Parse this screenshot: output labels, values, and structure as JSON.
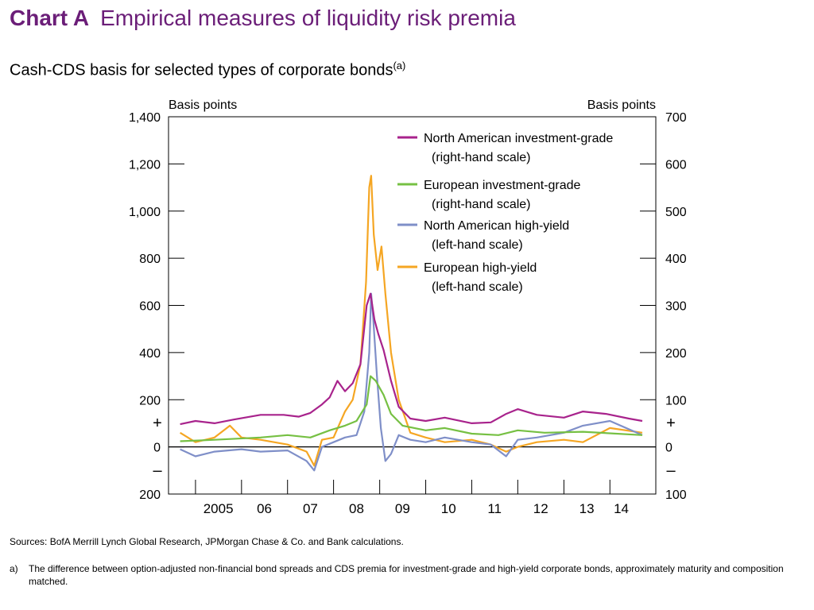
{
  "header": {
    "chart_label": "Chart A",
    "title": "Empirical measures of liquidity risk premia",
    "subtitle": "Cash-CDS basis for selected types of corporate bonds",
    "subtitle_note": "(a)"
  },
  "footer": {
    "sources": "Sources:  BofA Merrill Lynch Global Research, JPMorgan Chase & Co. and Bank calculations.",
    "footnote_marker": "a)",
    "footnote_text": "The difference between option-adjusted non-financial bond spreads and CDS premia for investment-grade and high-yield corporate bonds, approximately maturity and composition matched."
  },
  "chart_data": {
    "type": "line",
    "left_axis": {
      "unit_label": "Basis points",
      "range": [
        -200,
        1400
      ],
      "ticks": [
        -200,
        0,
        200,
        400,
        600,
        800,
        1000,
        1200,
        1400
      ],
      "tick_labels": [
        "200",
        "0",
        "200",
        "400",
        "600",
        "800",
        "1,000",
        "1,200",
        "1,400"
      ],
      "sign_plus": "+",
      "sign_minus": "–"
    },
    "right_axis": {
      "unit_label": "Basis points",
      "range": [
        -100,
        700
      ],
      "ticks": [
        -100,
        0,
        100,
        200,
        300,
        400,
        500,
        600,
        700
      ],
      "tick_labels": [
        "100",
        "0",
        "100",
        "200",
        "300",
        "400",
        "500",
        "600",
        "700"
      ],
      "sign_plus": "+",
      "sign_minus": "–"
    },
    "x_axis": {
      "range": [
        "2004-06-01",
        "2014-12-31"
      ],
      "year_labels": [
        {
          "label": "2005",
          "date": "2005-07-01"
        },
        {
          "label": "06",
          "date": "2006-07-01"
        },
        {
          "label": "07",
          "date": "2007-07-01"
        },
        {
          "label": "08",
          "date": "2008-07-01"
        },
        {
          "label": "09",
          "date": "2009-07-01"
        },
        {
          "label": "10",
          "date": "2010-07-01"
        },
        {
          "label": "11",
          "date": "2011-07-01"
        },
        {
          "label": "12",
          "date": "2012-07-01"
        },
        {
          "label": "13",
          "date": "2013-07-01"
        },
        {
          "label": "14",
          "date": "2014-04-01"
        }
      ]
    },
    "grid": false,
    "legend_position": "top-right",
    "series": [
      {
        "name": "North American investment-grade",
        "name_note": "(right-hand scale)",
        "axis": "right",
        "color": "#a8238c",
        "points": [
          [
            "2004-09-01",
            48
          ],
          [
            "2005-01-01",
            55
          ],
          [
            "2005-06-01",
            50
          ],
          [
            "2005-11-01",
            58
          ],
          [
            "2006-06-01",
            68
          ],
          [
            "2006-12-01",
            68
          ],
          [
            "2007-04-01",
            64
          ],
          [
            "2007-07-01",
            72
          ],
          [
            "2007-10-01",
            90
          ],
          [
            "2007-12-01",
            105
          ],
          [
            "2008-02-01",
            140
          ],
          [
            "2008-04-01",
            118
          ],
          [
            "2008-06-01",
            135
          ],
          [
            "2008-08-01",
            175
          ],
          [
            "2008-09-20",
            300
          ],
          [
            "2008-10-20",
            325
          ],
          [
            "2008-11-20",
            270
          ],
          [
            "2008-12-20",
            240
          ],
          [
            "2009-02-01",
            205
          ],
          [
            "2009-04-01",
            140
          ],
          [
            "2009-06-01",
            85
          ],
          [
            "2009-09-01",
            60
          ],
          [
            "2010-01-01",
            55
          ],
          [
            "2010-06-01",
            62
          ],
          [
            "2011-01-01",
            50
          ],
          [
            "2011-06-01",
            52
          ],
          [
            "2011-10-01",
            70
          ],
          [
            "2012-01-01",
            80
          ],
          [
            "2012-06-01",
            68
          ],
          [
            "2013-01-01",
            62
          ],
          [
            "2013-06-01",
            75
          ],
          [
            "2013-12-01",
            70
          ],
          [
            "2014-06-01",
            60
          ],
          [
            "2014-09-15",
            55
          ]
        ]
      },
      {
        "name": "European investment-grade",
        "name_note": "(right-hand scale)",
        "axis": "right",
        "color": "#76c043",
        "points": [
          [
            "2004-09-01",
            12
          ],
          [
            "2005-06-01",
            15
          ],
          [
            "2006-06-01",
            20
          ],
          [
            "2007-01-01",
            25
          ],
          [
            "2007-07-01",
            20
          ],
          [
            "2007-12-01",
            35
          ],
          [
            "2008-04-01",
            45
          ],
          [
            "2008-07-01",
            55
          ],
          [
            "2008-09-20",
            90
          ],
          [
            "2008-10-20",
            150
          ],
          [
            "2008-12-01",
            140
          ],
          [
            "2009-02-01",
            110
          ],
          [
            "2009-04-01",
            70
          ],
          [
            "2009-07-01",
            45
          ],
          [
            "2010-01-01",
            35
          ],
          [
            "2010-06-01",
            40
          ],
          [
            "2011-01-01",
            28
          ],
          [
            "2011-08-01",
            25
          ],
          [
            "2012-01-01",
            35
          ],
          [
            "2012-08-01",
            30
          ],
          [
            "2013-06-01",
            32
          ],
          [
            "2014-09-15",
            25
          ]
        ]
      },
      {
        "name": "North American high-yield",
        "name_note": "(left-hand scale)",
        "axis": "left",
        "color": "#7f8fc8",
        "points": [
          [
            "2004-09-01",
            -10
          ],
          [
            "2005-01-01",
            -40
          ],
          [
            "2005-06-01",
            -20
          ],
          [
            "2006-01-01",
            -10
          ],
          [
            "2006-06-01",
            -20
          ],
          [
            "2007-01-01",
            -15
          ],
          [
            "2007-06-01",
            -60
          ],
          [
            "2007-08-01",
            -100
          ],
          [
            "2007-10-01",
            0
          ],
          [
            "2008-01-01",
            20
          ],
          [
            "2008-04-01",
            40
          ],
          [
            "2008-07-01",
            50
          ],
          [
            "2008-09-01",
            150
          ],
          [
            "2008-10-10",
            400
          ],
          [
            "2008-10-25",
            650
          ],
          [
            "2008-11-10",
            550
          ],
          [
            "2008-12-10",
            300
          ],
          [
            "2009-01-10",
            80
          ],
          [
            "2009-02-15",
            -60
          ],
          [
            "2009-04-01",
            -30
          ],
          [
            "2009-06-01",
            50
          ],
          [
            "2009-09-01",
            30
          ],
          [
            "2010-01-01",
            20
          ],
          [
            "2010-06-01",
            40
          ],
          [
            "2011-01-01",
            20
          ],
          [
            "2011-06-01",
            10
          ],
          [
            "2011-10-01",
            -40
          ],
          [
            "2012-01-01",
            30
          ],
          [
            "2012-06-01",
            40
          ],
          [
            "2013-01-01",
            60
          ],
          [
            "2013-06-01",
            90
          ],
          [
            "2014-01-01",
            110
          ],
          [
            "2014-09-15",
            50
          ]
        ]
      },
      {
        "name": "European high-yield",
        "name_note": "(left-hand scale)",
        "axis": "left",
        "color": "#f5a623",
        "points": [
          [
            "2004-09-01",
            60
          ],
          [
            "2005-01-01",
            20
          ],
          [
            "2005-06-01",
            40
          ],
          [
            "2005-10-01",
            90
          ],
          [
            "2006-01-01",
            40
          ],
          [
            "2006-06-01",
            30
          ],
          [
            "2007-01-01",
            10
          ],
          [
            "2007-06-01",
            -20
          ],
          [
            "2007-08-01",
            -80
          ],
          [
            "2007-10-01",
            30
          ],
          [
            "2008-01-01",
            40
          ],
          [
            "2008-04-01",
            150
          ],
          [
            "2008-06-01",
            200
          ],
          [
            "2008-08-01",
            350
          ],
          [
            "2008-09-15",
            700
          ],
          [
            "2008-10-10",
            1100
          ],
          [
            "2008-10-25",
            1150
          ],
          [
            "2008-11-15",
            900
          ],
          [
            "2008-12-15",
            750
          ],
          [
            "2009-01-15",
            850
          ],
          [
            "2009-02-15",
            650
          ],
          [
            "2009-04-01",
            400
          ],
          [
            "2009-06-01",
            200
          ],
          [
            "2009-09-01",
            60
          ],
          [
            "2010-01-01",
            40
          ],
          [
            "2010-06-01",
            20
          ],
          [
            "2011-01-01",
            30
          ],
          [
            "2011-06-01",
            10
          ],
          [
            "2011-10-01",
            -20
          ],
          [
            "2012-01-01",
            0
          ],
          [
            "2012-06-01",
            20
          ],
          [
            "2013-01-01",
            30
          ],
          [
            "2013-06-01",
            20
          ],
          [
            "2014-01-01",
            80
          ],
          [
            "2014-09-15",
            60
          ]
        ]
      }
    ]
  }
}
